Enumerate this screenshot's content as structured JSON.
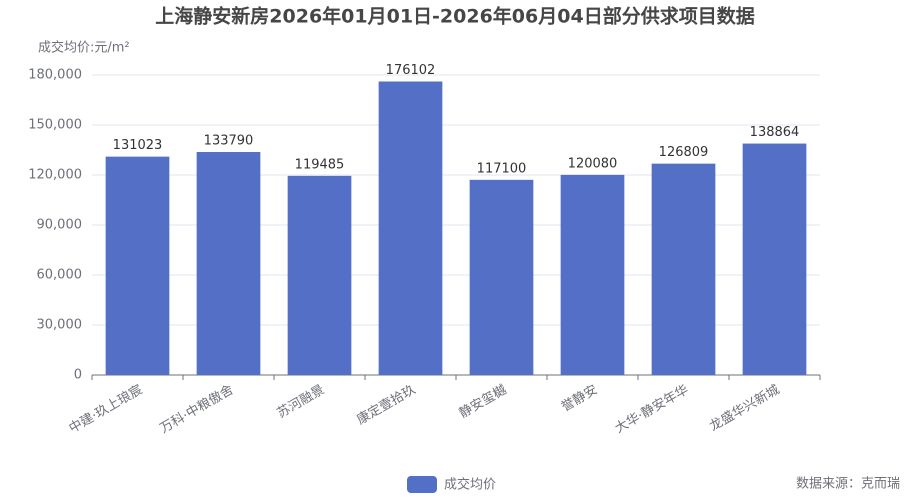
{
  "chart_data": {
    "type": "bar",
    "title": "上海静安新房2026年01月01日-2026年06月04日部分供求项目数据",
    "y_axis_label": "成交均价:元/m²",
    "categories": [
      "中建·玖上琅宸",
      "万科·中粮傲舍",
      "苏河融景",
      "康定壹拾玖",
      "静安玺樾",
      "誉静安",
      "大华·静安年华",
      "龙盛华兴新城"
    ],
    "series": [
      {
        "name": "成交均价",
        "color": "#5470c6",
        "values": [
          131023,
          133790,
          119485,
          176102,
          117100,
          120080,
          126809,
          138864
        ]
      }
    ],
    "ylim": [
      0,
      180000
    ],
    "yticks": [
      0,
      {
        "value": 30000,
        "label": "30,000"
      },
      {
        "value": 60000,
        "label": "60,000"
      },
      {
        "value": 90000,
        "label": "90,000"
      },
      {
        "value": 120000,
        "label": "120,000"
      },
      {
        "value": 150000,
        "label": "150,000"
      },
      {
        "value": 180000,
        "label": "180,000"
      }
    ],
    "grid": true,
    "legend": "bottom",
    "source": "数据来源：克而瑞"
  }
}
